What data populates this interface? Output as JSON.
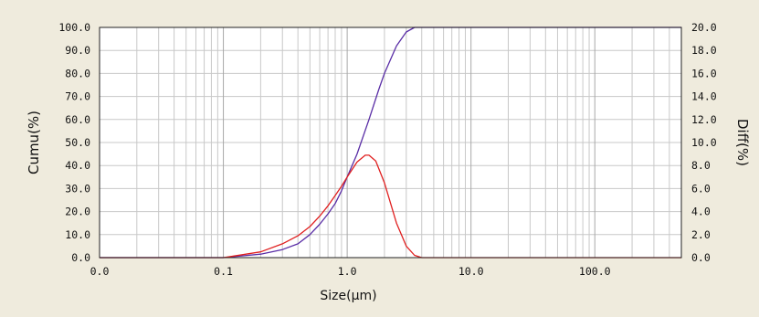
{
  "chart_data": {
    "type": "line",
    "title": "",
    "xlabel": "Size(μm)",
    "ylabel_left": "Cumu(%)",
    "ylabel_right": "Diff(%)",
    "x_scale": "log",
    "xlim": [
      0.01,
      500
    ],
    "ylim_left": [
      0,
      100
    ],
    "ylim_right": [
      0,
      20
    ],
    "x_ticks": [
      0.01,
      0.1,
      1,
      10,
      100
    ],
    "x_tick_labels": [
      "0.0",
      "0.1",
      "1.0",
      "10.0",
      "100.0"
    ],
    "y_left_ticks": [
      0,
      10,
      20,
      30,
      40,
      50,
      60,
      70,
      80,
      90,
      100
    ],
    "y_left_tick_labels": [
      "0.0",
      "10.0",
      "20.0",
      "30.0",
      "40.0",
      "50.0",
      "60.0",
      "70.0",
      "80.0",
      "90.0",
      "100.0"
    ],
    "y_right_ticks": [
      0,
      2,
      4,
      6,
      8,
      10,
      12,
      14,
      16,
      18,
      20
    ],
    "y_right_tick_labels": [
      "0.0",
      "2.0",
      "4.0",
      "6.0",
      "8.0",
      "10.0",
      "12.0",
      "14.0",
      "16.0",
      "18.0",
      "20.0"
    ],
    "grid": true,
    "series": [
      {
        "axis": "left",
        "color": "#5a2ea6",
        "x": [
          0.01,
          0.1,
          0.2,
          0.3,
          0.4,
          0.5,
          0.6,
          0.7,
          0.8,
          0.9,
          1.0,
          1.2,
          1.5,
          1.8,
          2.0,
          2.5,
          3.0,
          3.5,
          500
        ],
        "y": [
          0,
          0,
          1.5,
          3.5,
          6.0,
          10.0,
          14.5,
          19.0,
          23.5,
          29.0,
          35.0,
          45.0,
          60.0,
          73.0,
          80.0,
          92.0,
          98.0,
          100,
          100
        ]
      },
      {
        "axis": "right",
        "color": "#e02020",
        "x": [
          0.01,
          0.1,
          0.2,
          0.3,
          0.4,
          0.5,
          0.6,
          0.7,
          0.8,
          0.9,
          1.0,
          1.2,
          1.4,
          1.5,
          1.7,
          2.0,
          2.5,
          3.0,
          3.5,
          4.0,
          500
        ],
        "y": [
          0,
          0,
          0.5,
          1.2,
          1.9,
          2.7,
          3.6,
          4.5,
          5.4,
          6.2,
          7.0,
          8.3,
          8.9,
          8.9,
          8.4,
          6.5,
          3.0,
          1.0,
          0.2,
          0,
          0
        ]
      }
    ]
  }
}
